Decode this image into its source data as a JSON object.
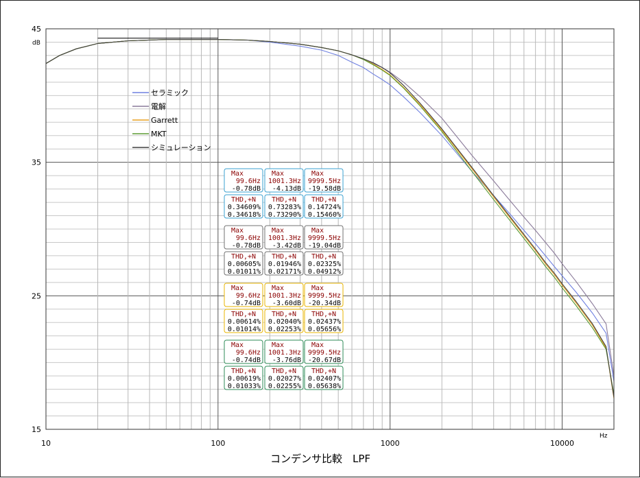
{
  "chart_data": {
    "type": "line",
    "title": "コンデンサ比較　LPF",
    "x_unit": "Hz",
    "y_unit": "dB",
    "x_scale": "log",
    "xlim": [
      10,
      20000
    ],
    "ylim": [
      15,
      45
    ],
    "x_ticks": [
      "10",
      "100",
      "1000",
      "10000"
    ],
    "y_ticks": [
      "45",
      "35",
      "25",
      "15"
    ],
    "grid": true,
    "legend_position": "top-left",
    "colors": {
      "ceramic": "#6f80e0",
      "electrolytic": "#8a7a9a",
      "garrett": "#e8a020",
      "mkt": "#5a9a30",
      "simulation": "#404040"
    },
    "series": [
      {
        "name": "セラミック",
        "color": "#6f80e0",
        "x": [
          10,
          12,
          15,
          20,
          30,
          50,
          70,
          100,
          150,
          200,
          300,
          400,
          500,
          600,
          700,
          800,
          900,
          1000,
          1200,
          1500,
          2000,
          3000,
          4000,
          5000,
          6000,
          7000,
          8000,
          9000,
          10000,
          12000,
          15000,
          18000,
          20000
        ],
        "y": [
          42.4,
          43.0,
          43.5,
          43.9,
          44.1,
          44.2,
          44.2,
          44.2,
          44.15,
          44.0,
          43.7,
          43.4,
          43.0,
          42.5,
          42.1,
          41.6,
          41.2,
          40.8,
          39.9,
          38.7,
          37.0,
          34.3,
          32.5,
          31.1,
          29.9,
          28.9,
          28.0,
          27.2,
          26.5,
          25.3,
          23.7,
          22.2,
          18.6
        ]
      },
      {
        "name": "電解",
        "color": "#8a7a9a",
        "x": [
          10,
          12,
          15,
          20,
          30,
          50,
          70,
          100,
          150,
          200,
          300,
          400,
          500,
          600,
          700,
          800,
          900,
          1000,
          1200,
          1500,
          2000,
          3000,
          4000,
          5000,
          6000,
          7000,
          8000,
          9000,
          10000,
          12000,
          15000,
          18000,
          20000
        ],
        "y": [
          42.4,
          43.0,
          43.5,
          43.9,
          44.1,
          44.2,
          44.2,
          44.2,
          44.15,
          44.05,
          43.85,
          43.6,
          43.35,
          43.05,
          42.75,
          42.4,
          42.1,
          41.75,
          41.0,
          39.9,
          38.3,
          35.5,
          33.6,
          32.1,
          30.9,
          29.9,
          29.0,
          28.2,
          27.4,
          26.1,
          24.4,
          22.9,
          19.0
        ]
      },
      {
        "name": "Garrett",
        "color": "#e8a020",
        "x": [
          10,
          12,
          15,
          20,
          30,
          50,
          70,
          100,
          150,
          200,
          300,
          400,
          500,
          600,
          700,
          800,
          900,
          1000,
          1200,
          1500,
          2000,
          3000,
          4000,
          5000,
          6000,
          7000,
          8000,
          9000,
          10000,
          12000,
          15000,
          18000,
          20000
        ],
        "y": [
          42.4,
          43.0,
          43.5,
          43.9,
          44.1,
          44.2,
          44.2,
          44.2,
          44.15,
          44.05,
          43.85,
          43.6,
          43.35,
          43.05,
          42.7,
          42.35,
          41.95,
          41.55,
          40.6,
          39.3,
          37.4,
          34.5,
          32.4,
          30.8,
          29.5,
          28.4,
          27.4,
          26.6,
          25.8,
          24.5,
          22.8,
          21.1,
          17.3
        ]
      },
      {
        "name": "MKT",
        "color": "#5a9a30",
        "x": [
          10,
          12,
          15,
          20,
          30,
          50,
          70,
          100,
          150,
          200,
          300,
          400,
          500,
          600,
          700,
          800,
          900,
          1000,
          1200,
          1500,
          2000,
          3000,
          4000,
          5000,
          6000,
          7000,
          8000,
          9000,
          10000,
          12000,
          15000,
          18000,
          20000
        ],
        "y": [
          42.4,
          43.0,
          43.5,
          43.9,
          44.1,
          44.2,
          44.2,
          44.2,
          44.15,
          44.05,
          43.85,
          43.6,
          43.35,
          43.05,
          42.7,
          42.3,
          41.9,
          41.5,
          40.55,
          39.2,
          37.3,
          34.3,
          32.2,
          30.6,
          29.3,
          28.2,
          27.2,
          26.4,
          25.6,
          24.3,
          22.6,
          21.0,
          17.6
        ]
      },
      {
        "name": "シミュレーション",
        "color": "#404040",
        "x": [
          10,
          12,
          15,
          20,
          30,
          50,
          70,
          100,
          150,
          200,
          300,
          400,
          500,
          600,
          700,
          800,
          900,
          1000,
          1200,
          1500,
          2000,
          3000,
          4000,
          5000,
          6000,
          7000,
          8000,
          9000,
          10000,
          12000,
          15000,
          18000,
          20000
        ],
        "y": [
          42.4,
          43.0,
          43.5,
          43.9,
          44.1,
          44.2,
          44.2,
          44.2,
          44.15,
          44.05,
          43.85,
          43.6,
          43.35,
          43.05,
          42.75,
          42.45,
          42.1,
          41.7,
          40.75,
          39.4,
          37.5,
          34.6,
          32.5,
          30.9,
          29.6,
          28.5,
          27.5,
          26.7,
          25.9,
          24.6,
          22.9,
          21.2,
          17.4
        ]
      }
    ],
    "reference_line": {
      "x": [
        20,
        100
      ],
      "y": 44.3
    },
    "measurements": [
      {
        "color": "#3aa0d0",
        "max": [
          {
            "label": "Max",
            "freq": "99.6Hz",
            "level": "-0.78dB"
          },
          {
            "label": "Max",
            "freq": "1001.3Hz",
            "level": "-4.13dB"
          },
          {
            "label": "Max",
            "freq": "9999.5Hz",
            "level": "-19.58dB"
          }
        ],
        "thd": [
          {
            "label": "THD,+N",
            "v1": "0.34609%",
            "v2": "0.34618%"
          },
          {
            "label": "THD,+N",
            "v1": "0.73283%",
            "v2": "0.73290%"
          },
          {
            "label": "THD,+N",
            "v1": "0.14724%",
            "v2": "0.15460%"
          }
        ]
      },
      {
        "color": "#707070",
        "max": [
          {
            "label": "Max",
            "freq": "99.6Hz",
            "level": "-0.78dB"
          },
          {
            "label": "Max",
            "freq": "1001.3Hz",
            "level": "-3.42dB"
          },
          {
            "label": "Max",
            "freq": "9999.5Hz",
            "level": "-19.04dB"
          }
        ],
        "thd": [
          {
            "label": "THD,+N",
            "v1": "0.00605%",
            "v2": "0.01011%"
          },
          {
            "label": "THD,+N",
            "v1": "0.01946%",
            "v2": "0.02171%"
          },
          {
            "label": "THD,+N",
            "v1": "0.02325%",
            "v2": "0.04912%"
          }
        ]
      },
      {
        "color": "#e8b400",
        "max": [
          {
            "label": "Max",
            "freq": "99.6Hz",
            "level": "-0.74dB"
          },
          {
            "label": "Max",
            "freq": "1001.3Hz",
            "level": "-3.60dB"
          },
          {
            "label": "Max",
            "freq": "9999.5Hz",
            "level": "-20.34dB"
          }
        ],
        "thd": [
          {
            "label": "THD,+N",
            "v1": "0.00614%",
            "v2": "0.01014%"
          },
          {
            "label": "THD,+N",
            "v1": "0.02040%",
            "v2": "0.02253%"
          },
          {
            "label": "THD,+N",
            "v1": "0.02437%",
            "v2": "0.05656%"
          }
        ]
      },
      {
        "color": "#2e8b57",
        "max": [
          {
            "label": "Max",
            "freq": "99.6Hz",
            "level": "-0.74dB"
          },
          {
            "label": "Max",
            "freq": "1001.3Hz",
            "level": "-3.76dB"
          },
          {
            "label": "Max",
            "freq": "9999.5Hz",
            "level": "-20.67dB"
          }
        ],
        "thd": [
          {
            "label": "THD,+N",
            "v1": "0.00619%",
            "v2": "0.01033%"
          },
          {
            "label": "THD,+N",
            "v1": "0.02027%",
            "v2": "0.02255%"
          },
          {
            "label": "THD,+N",
            "v1": "0.02407%",
            "v2": "0.05638%"
          }
        ]
      }
    ]
  }
}
